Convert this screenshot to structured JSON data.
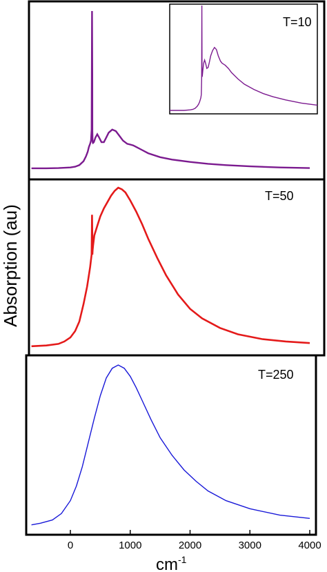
{
  "chart_data": [
    {
      "type": "line",
      "title": "T=10",
      "color": "#7b1a8f",
      "xlim": [
        -650,
        4000
      ],
      "series": [
        {
          "x": [
            -650,
            -400,
            -200,
            0,
            80,
            150,
            220,
            260,
            290,
            310,
            330,
            345,
            355,
            362,
            366,
            368,
            372,
            378,
            392,
            420,
            450,
            480,
            520,
            560,
            600,
            640,
            700,
            760,
            820,
            880,
            950,
            1000,
            1050,
            1100,
            1200,
            1300,
            1500,
            1700,
            2000,
            2300,
            2600,
            3000,
            3500,
            4000
          ],
          "y": [
            0.005,
            0.005,
            0.006,
            0.01,
            0.015,
            0.025,
            0.05,
            0.08,
            0.11,
            0.14,
            0.16,
            0.18,
            0.25,
            1.0,
            0.6,
            0.24,
            0.17,
            0.165,
            0.17,
            0.2,
            0.22,
            0.2,
            0.17,
            0.17,
            0.2,
            0.23,
            0.25,
            0.24,
            0.21,
            0.18,
            0.16,
            0.155,
            0.15,
            0.14,
            0.12,
            0.1,
            0.075,
            0.06,
            0.045,
            0.033,
            0.025,
            0.017,
            0.01,
            0.006
          ]
        }
      ],
      "inset": {
        "label": "",
        "x": [
          -650,
          -400,
          -200,
          0,
          80,
          150,
          220,
          260,
          290,
          310,
          330,
          345,
          355,
          362,
          366,
          368,
          372,
          378,
          392,
          420,
          450,
          480,
          520,
          560,
          600,
          640,
          700,
          760,
          820,
          880,
          950,
          1000,
          1050,
          1100,
          1200,
          1300,
          1500,
          1700,
          2000,
          2300,
          2600,
          3000,
          3500,
          4000
        ],
        "y": [
          0.0,
          0.0,
          0.0,
          0.005,
          0.01,
          0.02,
          0.04,
          0.06,
          0.08,
          0.1,
          0.12,
          0.15,
          0.3,
          1.0,
          0.55,
          0.33,
          0.32,
          0.33,
          0.38,
          0.45,
          0.48,
          0.45,
          0.4,
          0.41,
          0.46,
          0.52,
          0.57,
          0.6,
          0.58,
          0.52,
          0.47,
          0.45,
          0.44,
          0.43,
          0.4,
          0.36,
          0.3,
          0.25,
          0.2,
          0.16,
          0.13,
          0.1,
          0.07,
          0.05
        ]
      }
    },
    {
      "type": "line",
      "title": "T=50",
      "color": "#e41a1a",
      "xlim": [
        -650,
        4000
      ],
      "series": [
        {
          "x": [
            -650,
            -400,
            -200,
            -100,
            0,
            80,
            150,
            220,
            280,
            330,
            355,
            362,
            366,
            368,
            372,
            380,
            400,
            450,
            500,
            560,
            620,
            680,
            740,
            800,
            860,
            920,
            1000,
            1100,
            1200,
            1300,
            1450,
            1600,
            1800,
            2000,
            2200,
            2500,
            2800,
            3200,
            3600,
            4000
          ],
          "y": [
            0.005,
            0.01,
            0.02,
            0.035,
            0.06,
            0.1,
            0.16,
            0.27,
            0.38,
            0.5,
            0.58,
            0.83,
            0.7,
            0.58,
            0.61,
            0.64,
            0.7,
            0.76,
            0.82,
            0.87,
            0.91,
            0.95,
            0.98,
            1.0,
            0.99,
            0.97,
            0.92,
            0.85,
            0.77,
            0.68,
            0.56,
            0.45,
            0.33,
            0.24,
            0.18,
            0.12,
            0.08,
            0.05,
            0.035,
            0.025
          ]
        }
      ]
    },
    {
      "type": "line",
      "title": "T=250",
      "color": "#1818d8",
      "xlim": [
        -650,
        4000
      ],
      "xticks": [
        0,
        1000,
        2000,
        3000,
        4000
      ],
      "xtick_labels": [
        "0",
        "1000",
        "2000",
        "3000",
        "4000"
      ],
      "xlabel": "cm",
      "xlabel_superscript": "-1",
      "series": [
        {
          "x": [
            -650,
            -500,
            -300,
            -150,
            0,
            100,
            200,
            300,
            400,
            500,
            600,
            700,
            800,
            900,
            1000,
            1100,
            1200,
            1350,
            1500,
            1700,
            1900,
            2100,
            2300,
            2600,
            3000,
            3500,
            4000
          ],
          "y": [
            0.01,
            0.02,
            0.04,
            0.08,
            0.16,
            0.25,
            0.37,
            0.52,
            0.67,
            0.81,
            0.92,
            0.98,
            1.0,
            0.98,
            0.93,
            0.86,
            0.78,
            0.66,
            0.55,
            0.44,
            0.35,
            0.28,
            0.22,
            0.16,
            0.11,
            0.07,
            0.05
          ]
        }
      ]
    }
  ],
  "ylabel": "Absorption (au)"
}
